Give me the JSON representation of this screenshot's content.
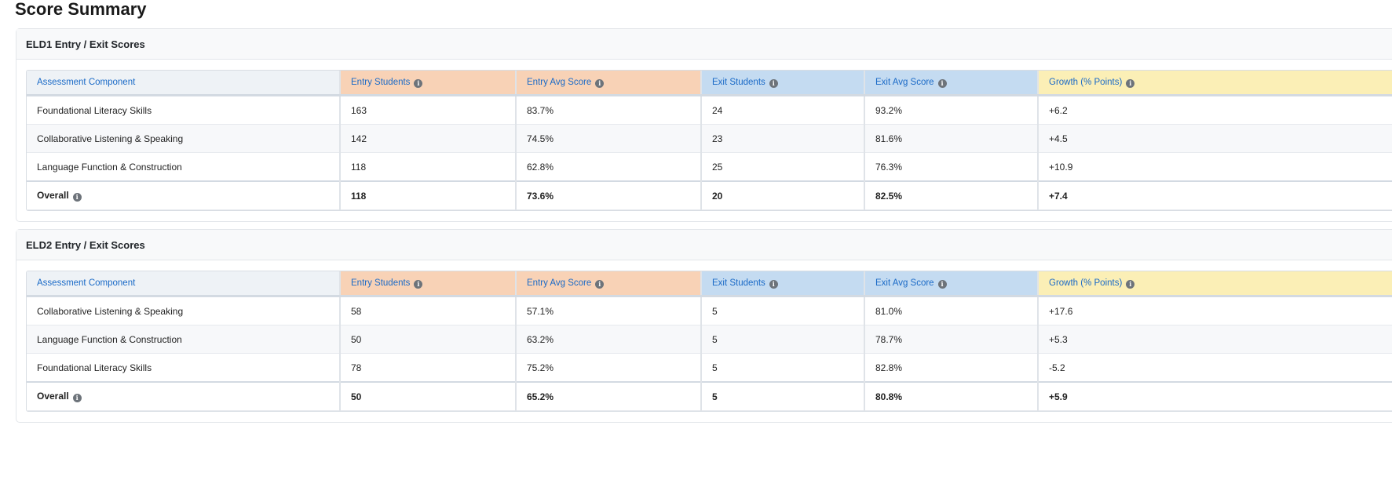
{
  "page": {
    "title": "Score Summary"
  },
  "columns": [
    "Assessment Component",
    "Entry Students",
    "Entry Avg Score",
    "Exit Students",
    "Exit Avg Score",
    "Growth (% Points)"
  ],
  "sections": [
    {
      "title": "ELD1 Entry / Exit Scores",
      "rows": [
        {
          "component": "Foundational Literacy Skills",
          "entry_students": "163",
          "entry_avg": "83.7%",
          "exit_students": "24",
          "exit_avg": "93.2%",
          "growth": "+6.2"
        },
        {
          "component": "Collaborative Listening & Speaking",
          "entry_students": "142",
          "entry_avg": "74.5%",
          "exit_students": "23",
          "exit_avg": "81.6%",
          "growth": "+4.5"
        },
        {
          "component": "Language Function & Construction",
          "entry_students": "118",
          "entry_avg": "62.8%",
          "exit_students": "25",
          "exit_avg": "76.3%",
          "growth": "+10.9"
        }
      ],
      "overall": {
        "label": "Overall",
        "entry_students": "118",
        "entry_avg": "73.6%",
        "exit_students": "20",
        "exit_avg": "82.5%",
        "growth": "+7.4"
      }
    },
    {
      "title": "ELD2 Entry / Exit Scores",
      "rows": [
        {
          "component": "Collaborative Listening & Speaking",
          "entry_students": "58",
          "entry_avg": "57.1%",
          "exit_students": "5",
          "exit_avg": "81.0%",
          "growth": "+17.6"
        },
        {
          "component": "Language Function & Construction",
          "entry_students": "50",
          "entry_avg": "63.2%",
          "exit_students": "5",
          "exit_avg": "78.7%",
          "growth": "+5.3"
        },
        {
          "component": "Foundational Literacy Skills",
          "entry_students": "78",
          "entry_avg": "75.2%",
          "exit_students": "5",
          "exit_avg": "82.8%",
          "growth": "-5.2"
        }
      ],
      "overall": {
        "label": "Overall",
        "entry_students": "50",
        "entry_avg": "65.2%",
        "exit_students": "5",
        "exit_avg": "80.8%",
        "growth": "+5.9"
      }
    }
  ],
  "icons": {
    "info": "info-circle-icon"
  },
  "colors": {
    "header_link": "#1a6ac7",
    "entry_header_bg": "#f8d2b6",
    "exit_header_bg": "#c4dbf1",
    "growth_header_bg": "#fbefb6",
    "component_header_bg": "#eef2f6"
  }
}
